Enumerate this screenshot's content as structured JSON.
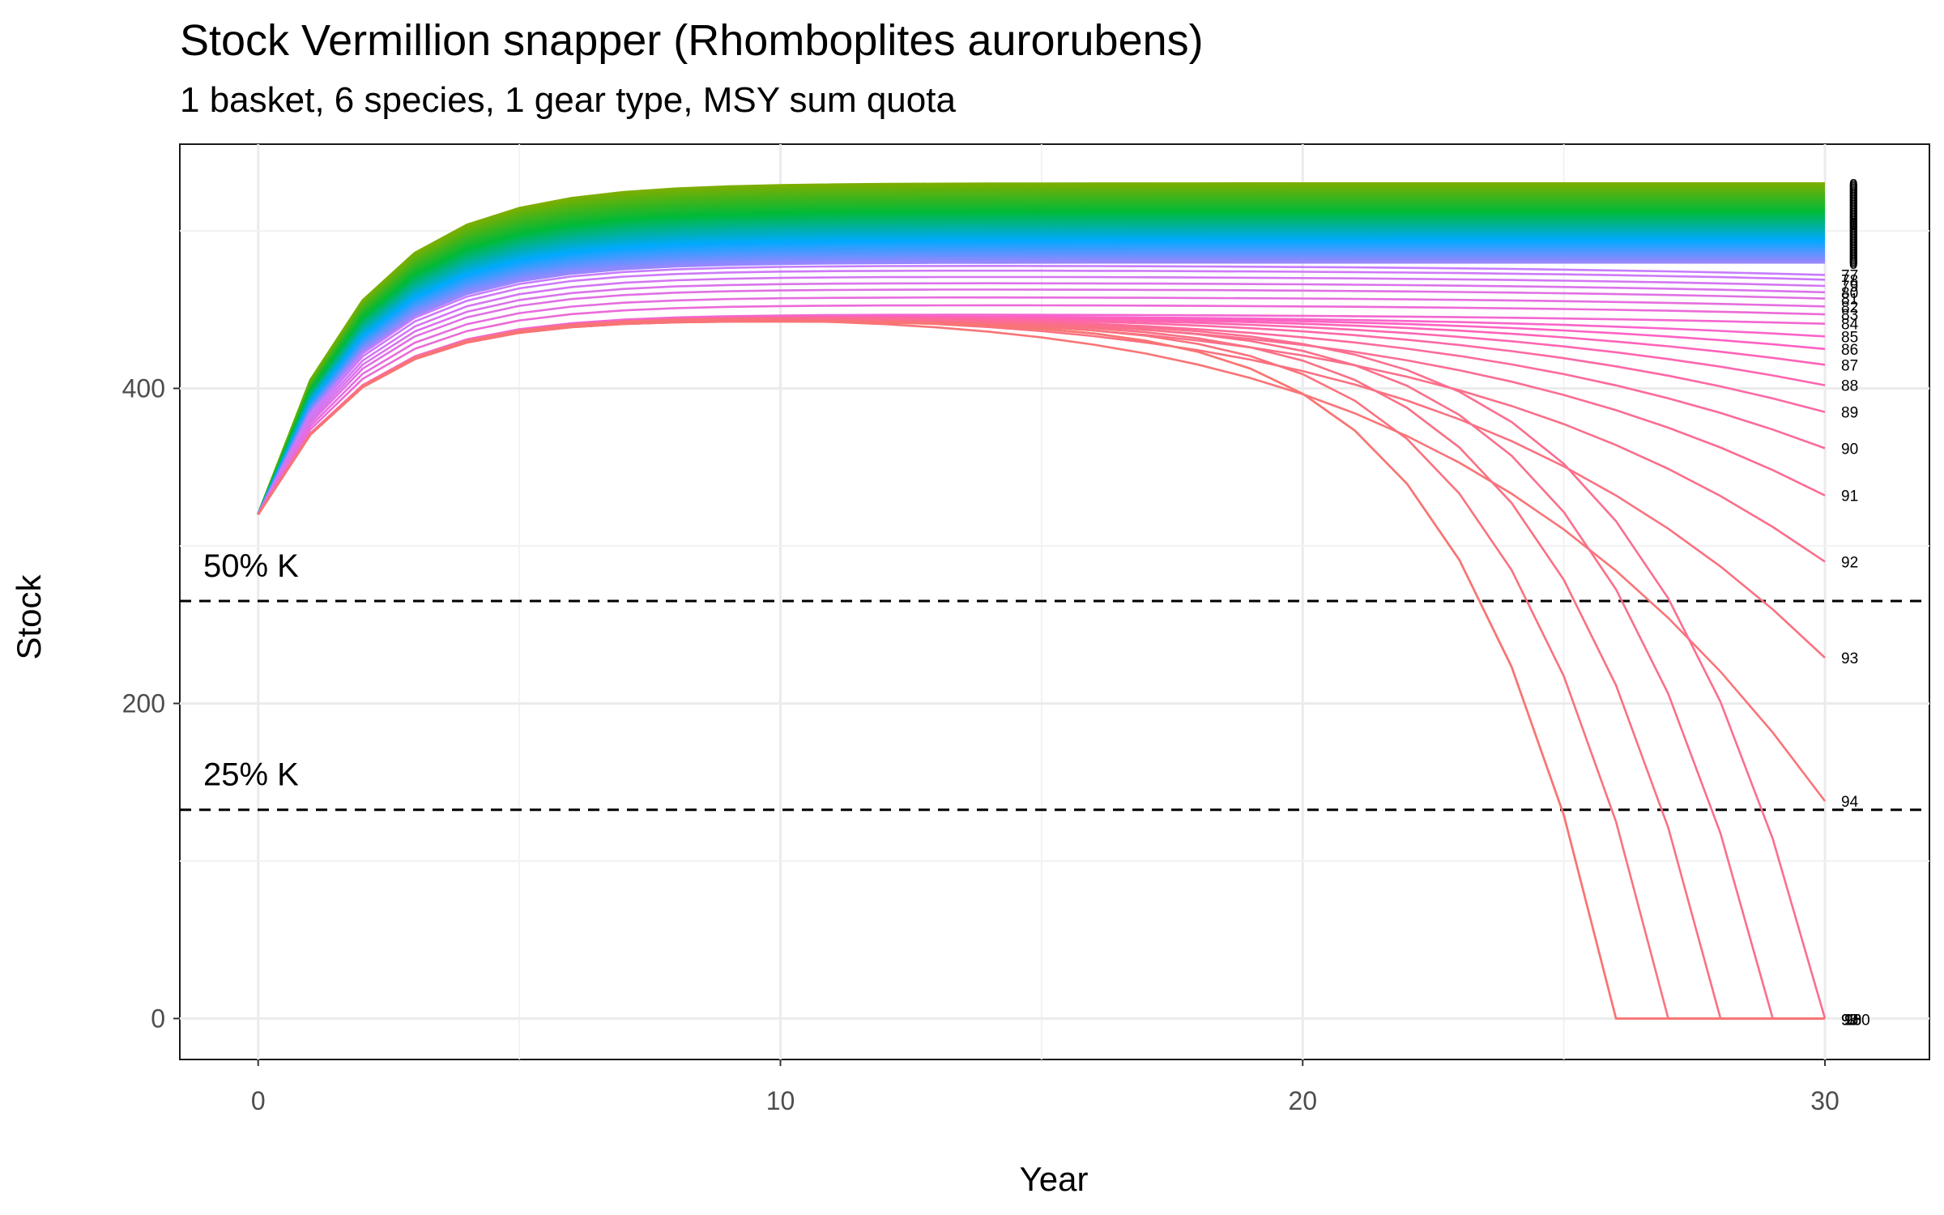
{
  "chart_data": {
    "type": "line",
    "title": "Stock Vermillion snapper (Rhomboplites aurorubens)",
    "subtitle": "1 basket, 6 species, 1 gear type, MSY sum quota",
    "xlabel": "Year",
    "ylabel": "Stock",
    "xlim": [
      -1.5,
      32
    ],
    "ylim": [
      -26,
      555
    ],
    "x_ticks": [
      0,
      10,
      20,
      30
    ],
    "y_ticks": [
      0,
      200,
      400
    ],
    "grid": true,
    "legend": "none",
    "x": [
      0,
      1,
      2,
      3,
      4,
      5,
      6,
      7,
      8,
      9,
      10,
      11,
      12,
      13,
      14,
      15,
      16,
      17,
      18,
      19,
      20,
      21,
      22,
      23,
      24,
      25,
      26,
      27,
      28,
      29,
      30
    ],
    "reference_lines": [
      {
        "label": "50% K",
        "y": 265
      },
      {
        "label": "25% K",
        "y": 132.5
      }
    ],
    "series_model": {
      "description_of_values": "Each labelled series is a stock trajectory starting at 320 in year 0; the series label gives the final-year endpoint label shown at the right edge.",
      "start_value": 320,
      "final_values": [
        {
          "label": "94",
          "value": 138
        },
        {
          "label": "93",
          "value": 229
        },
        {
          "label": "92",
          "value": 290
        },
        {
          "label": "91",
          "value": 332
        },
        {
          "label": "90",
          "value": 362
        },
        {
          "label": "89",
          "value": 385
        },
        {
          "label": "88",
          "value": 402
        },
        {
          "label": "87",
          "value": 415
        },
        {
          "label": "86",
          "value": 425
        },
        {
          "label": "85",
          "value": 433
        },
        {
          "label": "84",
          "value": 441
        },
        {
          "label": "83",
          "value": 447
        },
        {
          "label": "82",
          "value": 452
        },
        {
          "label": "81",
          "value": 457
        },
        {
          "label": "80",
          "value": 461
        },
        {
          "label": "79",
          "value": 465
        },
        {
          "label": "78",
          "value": 469
        },
        {
          "label": "77",
          "value": 472
        }
      ],
      "collapsed_series": [
        {
          "label": "95",
          "zero_year": 30
        },
        {
          "label": "96",
          "zero_year": 29
        },
        {
          "label": "97",
          "zero_year": 28
        },
        {
          "label": "98",
          "zero_year": 27
        },
        {
          "label": "99",
          "zero_year": 26
        },
        {
          "label": "100",
          "zero_year": 26
        }
      ],
      "upper_band_range": [
        480,
        530
      ]
    },
    "colors": {
      "top": "#7cae00",
      "upper_mid": "#00ba38",
      "mid": "#00a9ff",
      "lower_mid": "#c77cff",
      "lower": "#ff61c3",
      "bottom": "#f8766d"
    }
  }
}
